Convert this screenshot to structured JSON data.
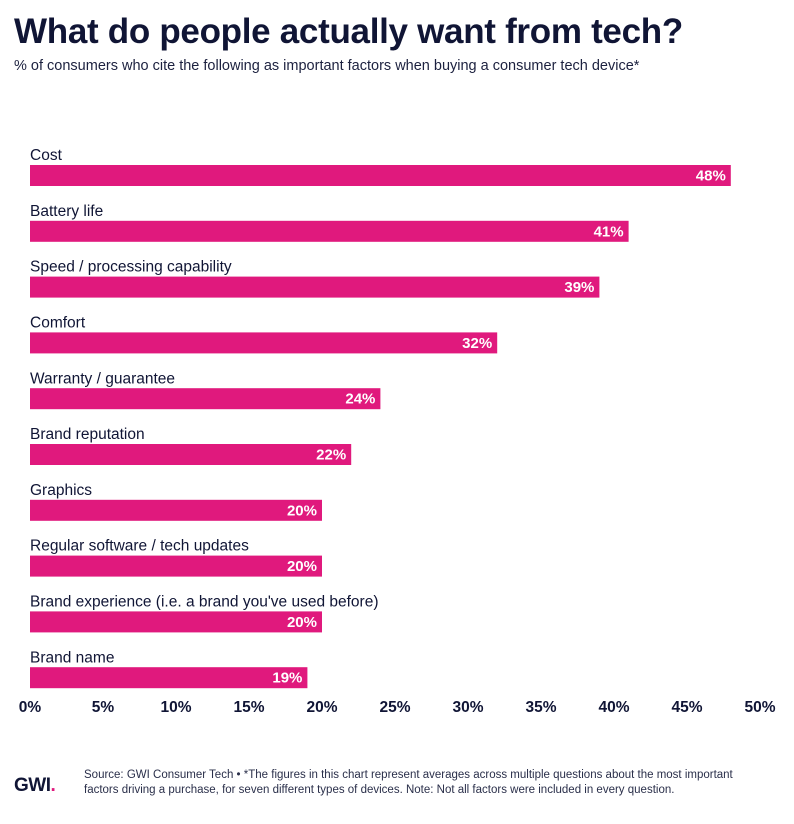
{
  "title": "What do people actually want from tech?",
  "subtitle": "% of consumers who cite the following as important factors when buying a consumer tech device*",
  "logo": {
    "text": "GWI",
    "dot": "."
  },
  "source": "Source: GWI Consumer Tech • *The figures in this chart represent averages across multiple questions about the most important factors driving a purchase, for seven different types of devices. Note: Not all factors were included in every question.",
  "colors": {
    "bar": "#e0197d",
    "text": "#101535",
    "label_on_bar": "#ffffff"
  },
  "chart_data": {
    "type": "bar",
    "orientation": "horizontal",
    "title": "What do people actually want from tech?",
    "xlabel": "",
    "ylabel": "",
    "xlim": [
      0,
      50
    ],
    "x_ticks": [
      0,
      5,
      10,
      15,
      20,
      25,
      30,
      35,
      40,
      45,
      50
    ],
    "x_tick_labels": [
      "0%",
      "5%",
      "10%",
      "15%",
      "20%",
      "25%",
      "30%",
      "35%",
      "40%",
      "45%",
      "50%"
    ],
    "categories": [
      "Cost",
      "Battery life",
      "Speed / processing capability",
      "Comfort",
      "Warranty / guarantee",
      "Brand reputation",
      "Graphics",
      "Regular software / tech updates",
      "Brand experience (i.e. a brand you've used before)",
      "Brand name"
    ],
    "values": [
      48,
      41,
      39,
      32,
      24,
      22,
      20,
      20,
      20,
      19
    ],
    "value_labels": [
      "48%",
      "41%",
      "39%",
      "32%",
      "24%",
      "22%",
      "20%",
      "20%",
      "20%",
      "19%"
    ],
    "grid": false,
    "legend": "none"
  }
}
